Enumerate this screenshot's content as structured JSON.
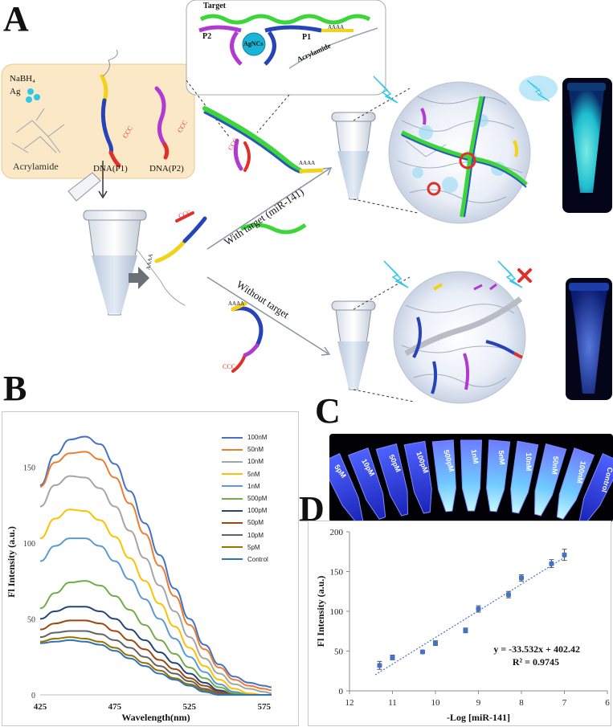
{
  "panels": {
    "a": "A",
    "b": "B",
    "c": "C",
    "d": "D"
  },
  "panel_a": {
    "inset_target": "Target",
    "inset_p2": "P2",
    "inset_p1": "P1",
    "inset_agncs": "AgNCs",
    "inset_acrylamide": "Acrylamide",
    "reagent_nabh4": "NaBH₄",
    "reagent_ag": "Ag",
    "reagent_acrylamide": "Acrylamide",
    "dna_p1": "DNA(P1)",
    "dna_p2": "DNA(P2)",
    "with_target": "With target (miR-141)",
    "without_target": "Without target",
    "ccc": "CCC",
    "aaaa": "AAAA"
  },
  "panel_c": {
    "tube_labels": [
      "5pM",
      "10pM",
      "50pM",
      "100pM",
      "500pM",
      "1nM",
      "5nM",
      "10nM",
      "50nM",
      "100nM",
      "Control"
    ]
  },
  "chart_data": [
    {
      "type": "line",
      "panel": "B",
      "xlabel": "Wavelength(nm)",
      "ylabel": "Fl Intensity (a.u.)",
      "xlim": [
        425,
        580
      ],
      "ylim": [
        0,
        175
      ],
      "xticks": [
        425,
        475,
        525,
        575
      ],
      "yticks": [
        0,
        50,
        100,
        150
      ],
      "legend_position": "top-right",
      "x": [
        425,
        435,
        445,
        455,
        465,
        475,
        485,
        495,
        505,
        515,
        525,
        535,
        545,
        555,
        565,
        575,
        580
      ],
      "series": [
        {
          "name": "100nM",
          "color": "#4472c4",
          "values": [
            138,
            158,
            168,
            170,
            165,
            152,
            134,
            113,
            92,
            70,
            50,
            33,
            20,
            12,
            8,
            6,
            5
          ]
        },
        {
          "name": "50nM",
          "color": "#ed7d31",
          "values": [
            137,
            153,
            159,
            160,
            155,
            143,
            126,
            106,
            85,
            65,
            46,
            30,
            18,
            10,
            6,
            4,
            3
          ]
        },
        {
          "name": "10nM",
          "color": "#a5a5a5",
          "values": [
            124,
            138,
            144,
            143,
            136,
            124,
            108,
            90,
            72,
            55,
            38,
            24,
            14,
            7,
            4,
            2,
            1
          ]
        },
        {
          "name": "5nM",
          "color": "#ffc000",
          "values": [
            103,
            116,
            122,
            121,
            115,
            104,
            90,
            75,
            60,
            45,
            31,
            19,
            10,
            4,
            1,
            0,
            0
          ]
        },
        {
          "name": "1nM",
          "color": "#5b9bd5",
          "values": [
            88,
            98,
            103,
            103,
            98,
            88,
            76,
            63,
            50,
            37,
            25,
            15,
            7,
            2,
            0,
            0,
            0
          ]
        },
        {
          "name": "500pM",
          "color": "#70ad47",
          "values": [
            57,
            67,
            74,
            75,
            72,
            65,
            56,
            46,
            36,
            27,
            18,
            11,
            5,
            1,
            0,
            0,
            0
          ]
        },
        {
          "name": "100pM",
          "color": "#264478",
          "values": [
            50,
            55,
            58,
            58,
            55,
            50,
            43,
            36,
            28,
            21,
            14,
            8,
            3,
            0,
            0,
            0,
            0
          ]
        },
        {
          "name": "50pM",
          "color": "#9e480e",
          "values": [
            43,
            47,
            49,
            49,
            47,
            42,
            36,
            30,
            23,
            17,
            11,
            6,
            2,
            0,
            0,
            0,
            0
          ]
        },
        {
          "name": "10pM",
          "color": "#636363",
          "values": [
            38,
            41,
            42,
            42,
            40,
            36,
            31,
            25,
            19,
            14,
            9,
            4,
            1,
            0,
            0,
            0,
            0
          ]
        },
        {
          "name": "5pM",
          "color": "#997300",
          "values": [
            35,
            37,
            38,
            37,
            35,
            31,
            26,
            21,
            16,
            11,
            7,
            3,
            0,
            0,
            0,
            0,
            0
          ]
        },
        {
          "name": "Control",
          "color": "#2e75b6",
          "values": [
            34,
            35,
            36,
            35,
            33,
            29,
            24,
            19,
            14,
            10,
            6,
            2,
            0,
            0,
            0,
            0,
            0
          ]
        }
      ]
    },
    {
      "type": "scatter",
      "panel": "D",
      "xlabel": "-Log [miR-141]",
      "ylabel": "Fl Intensity (a.u.)",
      "xlim": [
        12,
        6
      ],
      "ylim": [
        0,
        200
      ],
      "xticks": [
        12,
        11,
        10,
        9,
        8,
        7,
        6
      ],
      "yticks": [
        0,
        50,
        100,
        150,
        200
      ],
      "x": [
        11.3,
        11.0,
        10.3,
        10.0,
        9.3,
        9.0,
        8.3,
        8.0,
        7.3,
        7.0
      ],
      "y": [
        32,
        42,
        49,
        60,
        76,
        103,
        121,
        142,
        160,
        171
      ],
      "error": [
        5,
        3,
        2,
        3,
        3,
        4,
        4,
        4,
        5,
        7
      ],
      "point_color": "#4472c4",
      "trendline": {
        "slope": -33.532,
        "intercept": 402.42,
        "style": "dotted",
        "color": "#4472c4"
      },
      "equation": "y = -33.532x + 402.42",
      "r_squared": "R² = 0.9745"
    }
  ]
}
